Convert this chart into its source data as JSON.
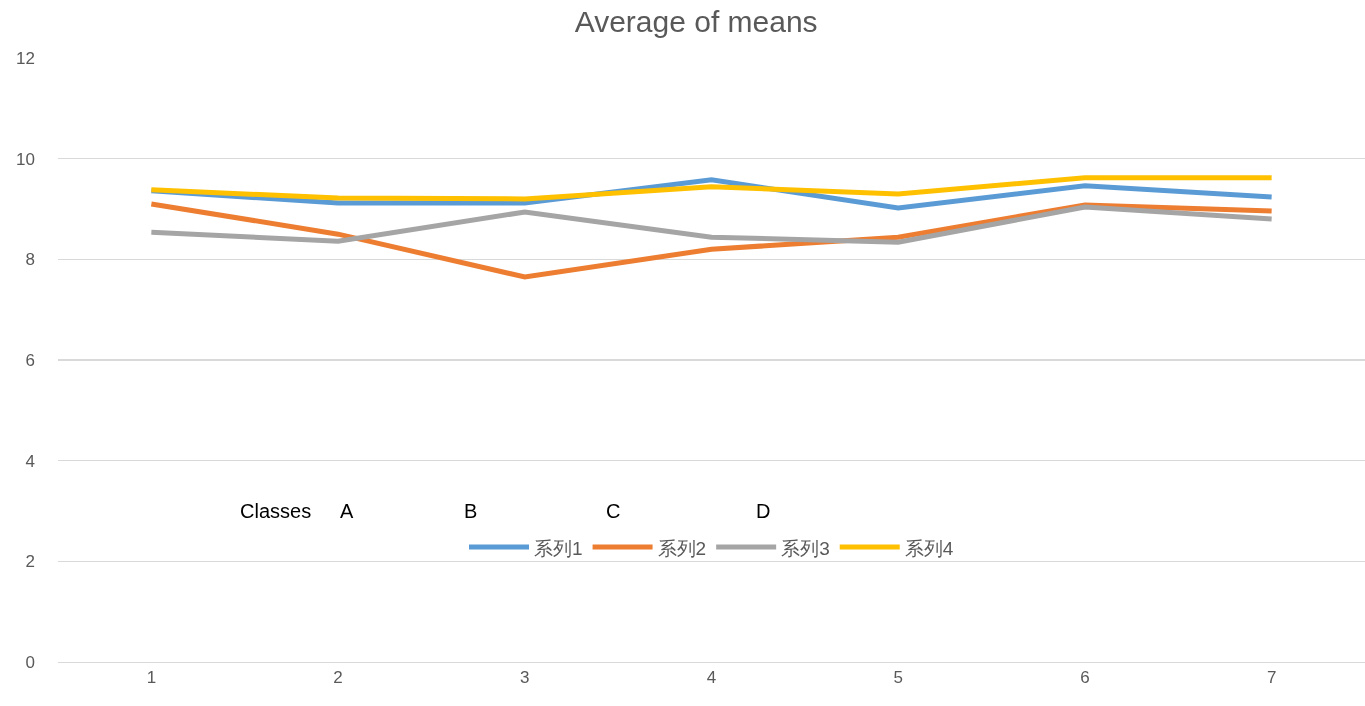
{
  "chart_data": {
    "type": "line",
    "title": "Average of means",
    "categories": [
      "1",
      "2",
      "3",
      "4",
      "5",
      "6",
      "7"
    ],
    "series": [
      {
        "name": "系列1",
        "color": "#5b9bd5",
        "values": [
          9.36,
          9.12,
          9.12,
          9.58,
          9.02,
          9.46,
          9.24
        ]
      },
      {
        "name": "系列2",
        "color": "#ed7d31",
        "values": [
          9.1,
          8.5,
          7.65,
          8.2,
          8.44,
          9.08,
          8.96
        ]
      },
      {
        "name": "系列3",
        "color": "#a5a5a5",
        "values": [
          8.54,
          8.36,
          8.94,
          8.44,
          8.34,
          9.04,
          8.8
        ]
      },
      {
        "name": "系列4",
        "color": "#ffc000",
        "values": [
          9.38,
          9.22,
          9.2,
          9.44,
          9.3,
          9.62,
          9.62
        ]
      }
    ],
    "ylim": [
      0,
      12
    ],
    "yticks": [
      0,
      2,
      4,
      6,
      8,
      10,
      12
    ],
    "grid": "y",
    "legend": "bottom",
    "marker": "none",
    "line_style": "solid",
    "annotations": [
      "Classes",
      "A",
      "B",
      "C",
      "D"
    ]
  }
}
